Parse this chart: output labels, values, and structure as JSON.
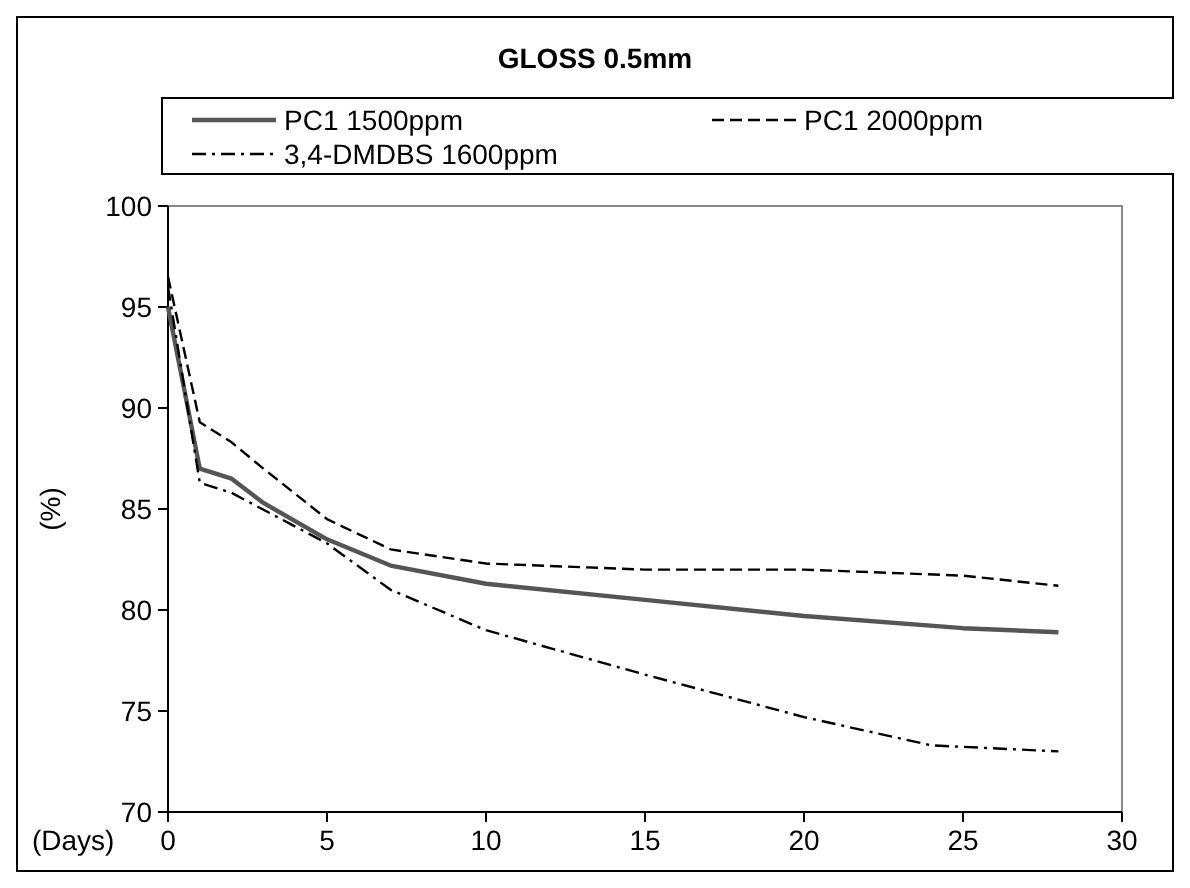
{
  "chart_data": {
    "type": "line",
    "title": "GLOSS 0.5mm",
    "xlabel": "(Days)",
    "ylabel": "(%)",
    "xlim": [
      0,
      30
    ],
    "xticks": [
      0,
      5,
      10,
      15,
      20,
      25,
      30
    ],
    "ylim": [
      70,
      100
    ],
    "yticks": [
      70,
      75,
      80,
      85,
      90,
      95,
      100
    ],
    "grid": false,
    "legend": "top",
    "marker": "none",
    "series": [
      {
        "name": "PC1 1500ppm",
        "color": "#555555",
        "line_style": "solid",
        "x": [
          0,
          1,
          2,
          3,
          5,
          7,
          10,
          15,
          20,
          25,
          28
        ],
        "values": [
          95,
          87,
          86.5,
          85.3,
          83.5,
          82.2,
          81.3,
          80.5,
          79.7,
          79.1,
          78.9
        ]
      },
      {
        "name": "PC1 2000ppm",
        "color": "#000000",
        "line_style": "dashed",
        "x": [
          0,
          1,
          2,
          3,
          5,
          7,
          10,
          15,
          20,
          25,
          28
        ],
        "values": [
          96.5,
          89.3,
          88.3,
          87,
          84.5,
          83,
          82.3,
          82,
          82,
          81.7,
          81.2
        ]
      },
      {
        "name": "3,4-DMDBS 1600ppm",
        "color": "#000000",
        "line_style": "dashdot",
        "x": [
          0,
          1,
          2,
          5,
          7,
          10,
          15,
          20,
          24,
          28
        ],
        "values": [
          96,
          86.3,
          85.8,
          83.3,
          81,
          79,
          76.8,
          74.7,
          73.3,
          73
        ]
      }
    ]
  }
}
